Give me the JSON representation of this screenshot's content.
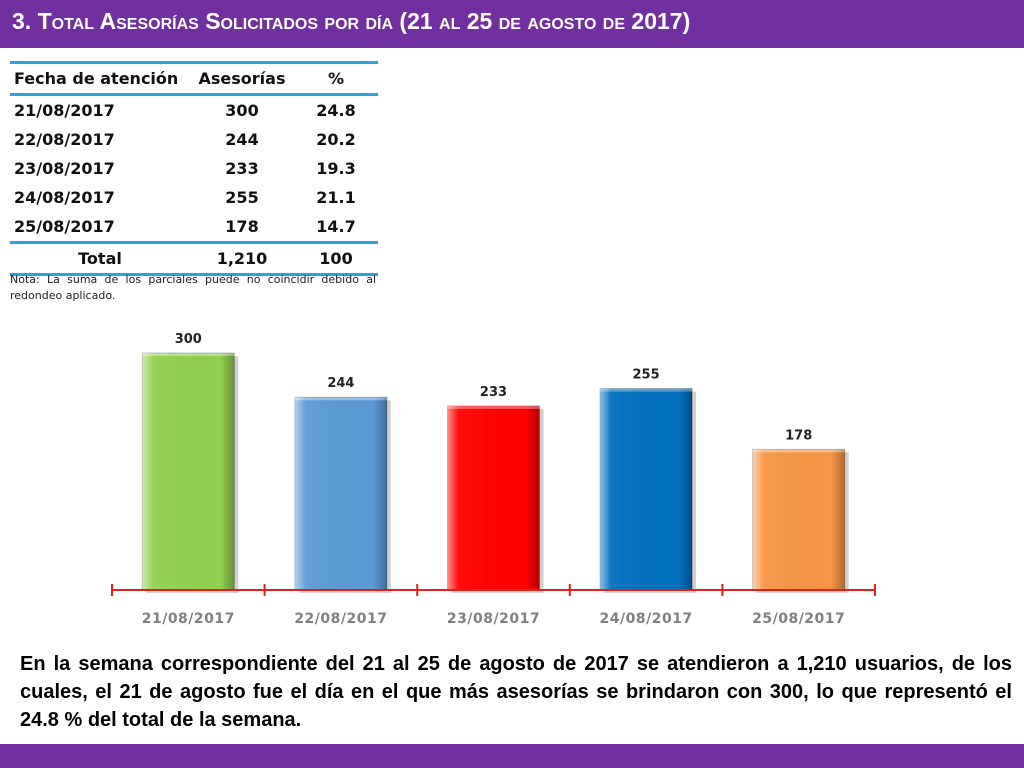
{
  "header": {
    "title": "3.  Total Asesorías Solicitados por día  (21 al 25 de agosto de 2017)"
  },
  "table": {
    "headers": [
      "Fecha de atención",
      "Asesorías",
      "%"
    ],
    "rows": [
      [
        "21/08/2017",
        "300",
        "24.8"
      ],
      [
        "22/08/2017",
        "244",
        "20.2"
      ],
      [
        "23/08/2017",
        "233",
        "19.3"
      ],
      [
        "24/08/2017",
        "255",
        "21.1"
      ],
      [
        "25/08/2017",
        "178",
        "14.7"
      ]
    ],
    "total": [
      "Total",
      "1,210",
      "100"
    ]
  },
  "note": "Nota: La suma de los parciales puede no coincidir debido al redondeo aplicado.",
  "chart_data": {
    "type": "bar",
    "categories": [
      "21/08/2017",
      "22/08/2017",
      "23/08/2017",
      "24/08/2017",
      "25/08/2017"
    ],
    "values": [
      300,
      244,
      233,
      255,
      178
    ],
    "data_labels": [
      "300",
      "244",
      "233",
      "255",
      "178"
    ],
    "colors": [
      "#92d050",
      "#5b9bd5",
      "#ff0000",
      "#0070c0",
      "#f79646"
    ],
    "axis_color": "#e0201a",
    "title": "",
    "xlabel": "",
    "ylabel": "",
    "ylim": [
      0,
      300
    ],
    "grid": false,
    "legend": "none"
  },
  "paragraph": "En la semana correspondiente del 21 al 25 de agosto de 2017 se atendieron a 1,210 usuarios, de los cuales, el 21 de agosto fue el día en el que más asesorías se brindaron con 300, lo que representó el 24.8 % del total de la semana.",
  "colors": {
    "header_bg": "#7030a0",
    "table_rule": "#29a3e0"
  }
}
